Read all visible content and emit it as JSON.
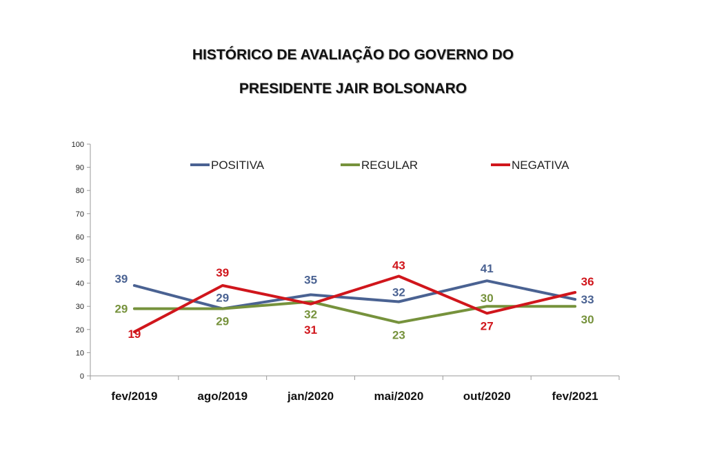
{
  "title": [
    "HISTÓRICO DE AVALIAÇÃO DO GOVERNO DO",
    "PRESIDENTE JAIR BOLSONARO"
  ],
  "chart_data": {
    "type": "line",
    "title": "HISTÓRICO DE AVALIAÇÃO DO GOVERNO DO PRESIDENTE JAIR BOLSONARO",
    "categories": [
      "fev/2019",
      "ago/2019",
      "jan/2020",
      "mai/2020",
      "out/2020",
      "fev/2021"
    ],
    "ylim": [
      0,
      100
    ],
    "yticks": [
      0,
      10,
      20,
      30,
      40,
      50,
      60,
      70,
      80,
      90,
      100
    ],
    "grid": false,
    "legend_position": "top",
    "series": [
      {
        "name": "POSITIVA",
        "color": "#4a6292",
        "values": [
          39,
          29,
          35,
          32,
          41,
          33
        ]
      },
      {
        "name": "REGULAR",
        "color": "#76923c",
        "values": [
          29,
          29,
          32,
          23,
          30,
          30
        ]
      },
      {
        "name": "NEGATIVA",
        "color": "#d0161c",
        "values": [
          19,
          39,
          31,
          43,
          27,
          36
        ]
      }
    ]
  }
}
